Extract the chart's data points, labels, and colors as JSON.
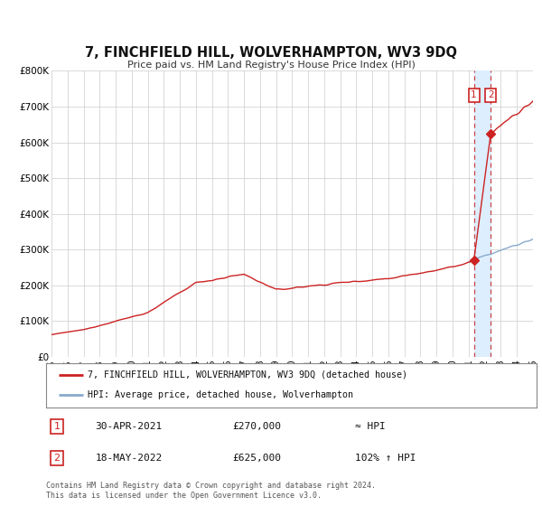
{
  "title": "7, FINCHFIELD HILL, WOLVERHAMPTON, WV3 9DQ",
  "subtitle": "Price paid vs. HM Land Registry's House Price Index (HPI)",
  "ylim": [
    0,
    800000
  ],
  "xlim": [
    1995,
    2025
  ],
  "yticks": [
    0,
    100000,
    200000,
    300000,
    400000,
    500000,
    600000,
    700000,
    800000
  ],
  "ytick_labels": [
    "£0",
    "£100K",
    "£200K",
    "£300K",
    "£400K",
    "£500K",
    "£600K",
    "£700K",
    "£800K"
  ],
  "xticks": [
    1995,
    1996,
    1997,
    1998,
    1999,
    2000,
    2001,
    2002,
    2003,
    2004,
    2005,
    2006,
    2007,
    2008,
    2009,
    2010,
    2011,
    2012,
    2013,
    2014,
    2015,
    2016,
    2017,
    2018,
    2019,
    2020,
    2021,
    2022,
    2023,
    2024,
    2025
  ],
  "hpi_color": "#88aacc",
  "price_color": "#cc2222",
  "marker1_date": 2021.33,
  "marker1_price": 270000,
  "marker2_date": 2022.38,
  "marker2_price": 625000,
  "legend_label1": "7, FINCHFIELD HILL, WOLVERHAMPTON, WV3 9DQ (detached house)",
  "legend_label2": "HPI: Average price, detached house, Wolverhampton",
  "note1_num": "1",
  "note1_date": "30-APR-2021",
  "note1_price": "£270,000",
  "note1_hpi": "≈ HPI",
  "note2_num": "2",
  "note2_date": "18-MAY-2022",
  "note2_price": "£625,000",
  "note2_hpi": "102% ↑ HPI",
  "footer": "Contains HM Land Registry data © Crown copyright and database right 2024.\nThis data is licensed under the Open Government Licence v3.0.",
  "background_color": "#ffffff",
  "span_color": "#ddeeff",
  "vline_color": "#cc4444"
}
